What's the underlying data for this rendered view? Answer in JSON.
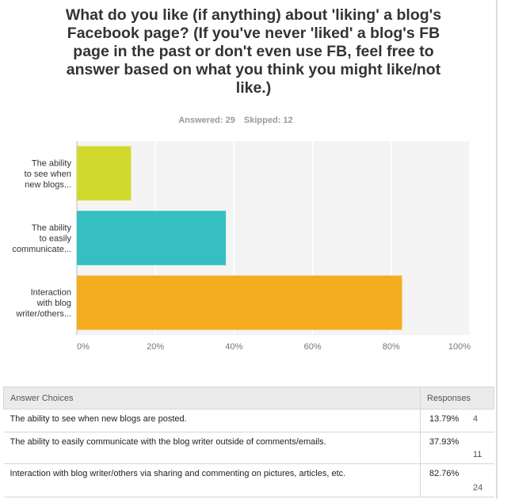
{
  "survey": {
    "question": "What do you like (if anything) about 'liking' a blog's Facebook page? (If you've never 'liked' a blog's FB page in the past or don't even use FB, feel free to answer based on what you think you might like/not like.)",
    "answered_label": "Answered: 29",
    "skipped_label": "Skipped: 12"
  },
  "chart_data": {
    "type": "bar",
    "orientation": "horizontal",
    "categories": [
      "The ability to see when new blogs...",
      "The ability to easily communicate...",
      "Interaction with blog writer/others..."
    ],
    "category_lines": [
      [
        "The ability",
        "to see when",
        "new blogs..."
      ],
      [
        "The ability",
        "to easily",
        "communicate..."
      ],
      [
        "Interaction",
        "with blog",
        "writer/others..."
      ]
    ],
    "values": [
      13.79,
      37.93,
      82.76
    ],
    "colors": [
      "#d0d92e",
      "#35bfc0",
      "#f5ad1f"
    ],
    "xlim": [
      0,
      100
    ],
    "x_ticks": [
      "0%",
      "20%",
      "40%",
      "60%",
      "80%",
      "100%"
    ],
    "grid": true,
    "legend": "none"
  },
  "table": {
    "header_choices": "Answer Choices",
    "header_responses": "Responses",
    "rows": [
      {
        "choice": "The ability to see when new blogs are posted.",
        "percent": "13.79%",
        "count": "4"
      },
      {
        "choice": "The ability to easily communicate with the blog writer outside of comments/emails.",
        "percent": "37.93%",
        "count": "11"
      },
      {
        "choice": "Interaction with blog writer/others via sharing and commenting on pictures, articles, etc.",
        "percent": "82.76%",
        "count": "24"
      }
    ]
  }
}
